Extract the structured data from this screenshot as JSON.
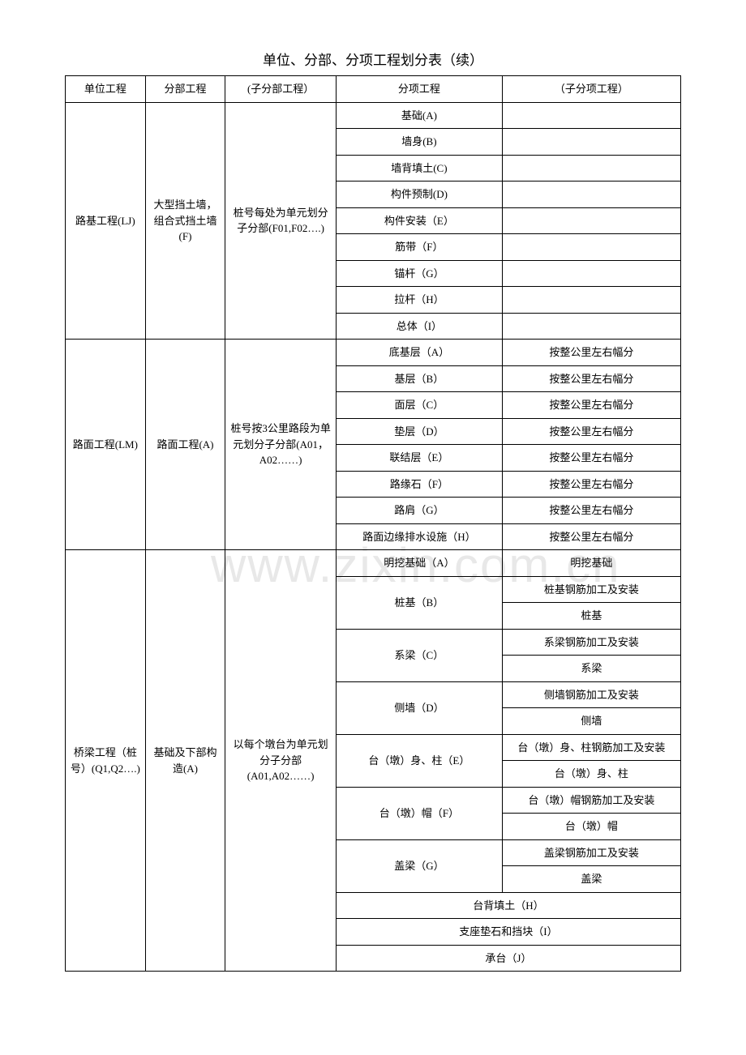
{
  "title": "单位、分部、分项工程划分表（续）",
  "watermark": "www.zixin.com.cn",
  "headers": {
    "col1": "单位工程",
    "col2": "分部工程",
    "col3": "(子分部工程）",
    "col4": "分项工程",
    "col5": "（子分项工程）"
  },
  "section1": {
    "unit": "路基工程(LJ)",
    "division": "大型挡土墙，组合式挡土墙(F)",
    "subdivision": "桩号每处为单元划分子分部(F01,F02….)",
    "items": [
      {
        "name": "基础(A)",
        "sub": ""
      },
      {
        "name": "墙身(B)",
        "sub": ""
      },
      {
        "name": "墙背填土(C)",
        "sub": ""
      },
      {
        "name": "构件预制(D)",
        "sub": ""
      },
      {
        "name": "构件安装（E）",
        "sub": ""
      },
      {
        "name": "筋带（F）",
        "sub": ""
      },
      {
        "name": "锚杆（G）",
        "sub": ""
      },
      {
        "name": "拉杆（H）",
        "sub": ""
      },
      {
        "name": "总体（I）",
        "sub": ""
      }
    ]
  },
  "section2": {
    "unit": "路面工程(LM)",
    "division": "路面工程(A)",
    "subdivision": "桩号按3公里路段为单元划分子分部(A01，A02……)",
    "items": [
      {
        "name": "底基层（A）",
        "sub": "按整公里左右幅分"
      },
      {
        "name": "基层（B）",
        "sub": "按整公里左右幅分"
      },
      {
        "name": "面层（C）",
        "sub": "按整公里左右幅分"
      },
      {
        "name": "垫层（D）",
        "sub": "按整公里左右幅分"
      },
      {
        "name": "联结层（E）",
        "sub": "按整公里左右幅分"
      },
      {
        "name": "路缘石（F）",
        "sub": "按整公里左右幅分"
      },
      {
        "name": "路肩（G）",
        "sub": "按整公里左右幅分"
      },
      {
        "name": "路面边缘排水设施（H）",
        "sub": "按整公里左右幅分"
      }
    ]
  },
  "section3": {
    "unit": "桥梁工程（桩号）(Q1,Q2….)",
    "division": "基础及下部构造(A)",
    "subdivision": "以每个墩台为单元划分子分部(A01,A02……)",
    "items": [
      {
        "name": "明挖基础（A）",
        "subs": [
          "明挖基础"
        ]
      },
      {
        "name": "桩基（B）",
        "subs": [
          "桩基钢筋加工及安装",
          "桩基"
        ]
      },
      {
        "name": "系梁（C）",
        "subs": [
          "系梁钢筋加工及安装",
          "系梁"
        ]
      },
      {
        "name": "侧墙（D）",
        "subs": [
          "侧墙钢筋加工及安装",
          "侧墙"
        ]
      },
      {
        "name": "台（墩）身、柱（E）",
        "subs": [
          "台（墩）身、柱钢筋加工及安装",
          "台（墩）身、柱"
        ]
      },
      {
        "name": "台（墩）帽（F）",
        "subs": [
          "台（墩）帽钢筋加工及安装",
          "台（墩）帽"
        ]
      },
      {
        "name": "盖梁（G）",
        "subs": [
          "盖梁钢筋加工及安装",
          "盖梁"
        ]
      }
    ],
    "spanItems": [
      "台背填土（H）",
      "支座垫石和挡块（I）",
      "承台（J）"
    ]
  }
}
